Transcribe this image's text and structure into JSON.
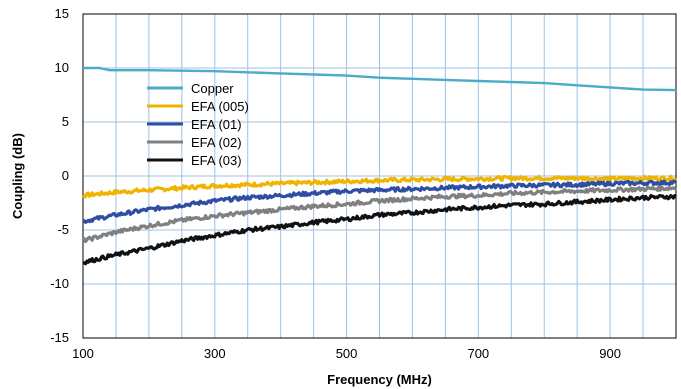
{
  "chart_data": {
    "type": "line",
    "title": "",
    "xlabel": "Frequency (MHz)",
    "ylabel": "Coupling (dB)",
    "xlim": [
      100,
      1000
    ],
    "ylim": [
      -15,
      15
    ],
    "x_ticks": [
      100,
      300,
      500,
      700,
      900
    ],
    "x_tick_labels": [
      "100",
      "300",
      "500",
      "700",
      "900"
    ],
    "y_ticks": [
      15,
      10,
      5,
      0,
      -5,
      -10,
      -15
    ],
    "y_tick_labels": [
      "15",
      "10",
      "5",
      "0",
      "-5",
      "-10",
      "-15"
    ],
    "grid": true,
    "legend_position": "upper-left-inside",
    "series": [
      {
        "name": "Copper",
        "color": "#4bacc6",
        "x": [
          100,
          125,
          140,
          200,
          250,
          300,
          350,
          400,
          450,
          500,
          550,
          600,
          650,
          700,
          750,
          800,
          850,
          900,
          950,
          1000
        ],
        "y": [
          10.0,
          10.0,
          9.8,
          9.8,
          9.75,
          9.7,
          9.6,
          9.5,
          9.4,
          9.3,
          9.1,
          9.0,
          8.9,
          8.8,
          8.7,
          8.6,
          8.4,
          8.2,
          8.0,
          7.95
        ]
      },
      {
        "name": "EFA (005)",
        "color": "#f0b400",
        "x": [
          100,
          150,
          200,
          250,
          300,
          350,
          400,
          450,
          500,
          550,
          600,
          650,
          700,
          750,
          800,
          850,
          900,
          950,
          1000
        ],
        "y": [
          -1.8,
          -1.5,
          -1.3,
          -1.1,
          -0.9,
          -0.8,
          -0.7,
          -0.6,
          -0.5,
          -0.4,
          -0.35,
          -0.3,
          -0.25,
          -0.2,
          -0.2,
          -0.2,
          -0.25,
          -0.2,
          -0.2
        ]
      },
      {
        "name": "EFA (01)",
        "color": "#2e4ea3",
        "x": [
          100,
          150,
          200,
          250,
          300,
          350,
          400,
          450,
          500,
          550,
          600,
          650,
          700,
          750,
          800,
          850,
          900,
          950,
          1000
        ],
        "y": [
          -4.2,
          -3.6,
          -3.1,
          -2.7,
          -2.3,
          -2.0,
          -1.8,
          -1.6,
          -1.4,
          -1.3,
          -1.2,
          -1.1,
          -1.0,
          -0.9,
          -0.85,
          -0.8,
          -0.7,
          -0.65,
          -0.6
        ]
      },
      {
        "name": "EFA (02)",
        "color": "#808080",
        "x": [
          100,
          150,
          200,
          250,
          300,
          350,
          400,
          450,
          500,
          550,
          600,
          650,
          700,
          750,
          800,
          850,
          900,
          950,
          1000
        ],
        "y": [
          -6.0,
          -5.2,
          -4.6,
          -4.1,
          -3.7,
          -3.4,
          -3.1,
          -2.8,
          -2.6,
          -2.3,
          -2.1,
          -1.9,
          -1.8,
          -1.6,
          -1.5,
          -1.4,
          -1.3,
          -1.2,
          -1.1
        ]
      },
      {
        "name": "EFA (03)",
        "color": "#111111",
        "x": [
          100,
          150,
          200,
          250,
          300,
          350,
          400,
          450,
          500,
          550,
          600,
          650,
          700,
          750,
          800,
          850,
          900,
          950,
          1000
        ],
        "y": [
          -8.0,
          -7.3,
          -6.7,
          -6.0,
          -5.5,
          -5.0,
          -4.7,
          -4.3,
          -4.0,
          -3.6,
          -3.4,
          -3.1,
          -2.9,
          -2.7,
          -2.6,
          -2.4,
          -2.2,
          -2.0,
          -1.9
        ]
      }
    ]
  }
}
